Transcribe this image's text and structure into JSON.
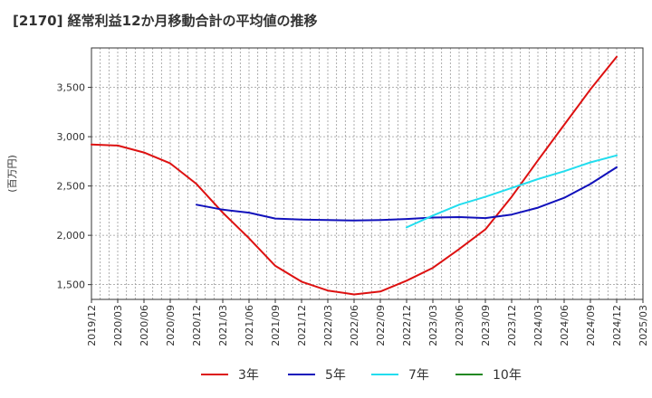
{
  "title": "[2170]  経常利益12か月移動合計の平均値の推移",
  "chart_data": {
    "type": "line",
    "title": "[2170]  経常利益12か月移動合計の平均値の推移",
    "ylabel": "(百万円)",
    "xlabel": "",
    "ylim": [
      1350,
      3900
    ],
    "yticks": [
      1500,
      2000,
      2500,
      3000,
      3500
    ],
    "ytick_labels": [
      "1,500",
      "2,000",
      "2,500",
      "3,000",
      "3,500"
    ],
    "xlim": [
      "2019/12",
      "2025/03"
    ],
    "xtick_labels": [
      "2019/12",
      "2020/03",
      "2020/06",
      "2020/09",
      "2020/12",
      "2021/03",
      "2021/06",
      "2021/09",
      "2021/12",
      "2022/03",
      "2022/06",
      "2022/09",
      "2022/12",
      "2023/03",
      "2023/06",
      "2023/09",
      "2023/12",
      "2024/03",
      "2024/06",
      "2024/09",
      "2024/12",
      "2025/03"
    ],
    "grid": true,
    "legend_position": "bottom",
    "series": [
      {
        "name": "3年",
        "color": "#dd1111",
        "x": [
          "2019/12",
          "2020/03",
          "2020/06",
          "2020/09",
          "2020/12",
          "2021/03",
          "2021/06",
          "2021/09",
          "2021/12",
          "2022/03",
          "2022/06",
          "2022/09",
          "2022/12",
          "2023/03",
          "2023/06",
          "2023/09",
          "2023/12",
          "2024/03",
          "2024/06",
          "2024/09",
          "2024/12"
        ],
        "values": [
          2920,
          2910,
          2840,
          2730,
          2520,
          2230,
          1970,
          1690,
          1530,
          1440,
          1400,
          1430,
          1540,
          1670,
          1860,
          2060,
          2390,
          2760,
          3120,
          3480,
          3810
        ]
      },
      {
        "name": "5年",
        "color": "#1111bb",
        "x": [
          "2020/12",
          "2021/03",
          "2021/06",
          "2021/09",
          "2021/12",
          "2022/03",
          "2022/06",
          "2022/09",
          "2022/12",
          "2023/03",
          "2023/06",
          "2023/09",
          "2023/12",
          "2024/03",
          "2024/06",
          "2024/09",
          "2024/12"
        ],
        "values": [
          2310,
          2260,
          2230,
          2170,
          2160,
          2155,
          2150,
          2155,
          2165,
          2180,
          2185,
          2175,
          2210,
          2280,
          2380,
          2520,
          2690
        ]
      },
      {
        "name": "7年",
        "color": "#22ddee",
        "x": [
          "2022/12",
          "2023/03",
          "2023/06",
          "2023/09",
          "2023/12",
          "2024/03",
          "2024/06",
          "2024/09",
          "2024/12"
        ],
        "values": [
          2080,
          2200,
          2310,
          2390,
          2480,
          2570,
          2650,
          2740,
          2810
        ]
      },
      {
        "name": "10年",
        "color": "#228822",
        "x": [],
        "values": []
      }
    ]
  }
}
